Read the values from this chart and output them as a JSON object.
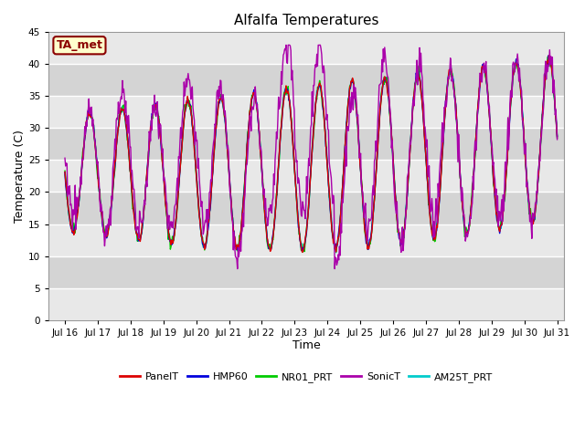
{
  "title": "Alfalfa Temperatures",
  "xlabel": "Time",
  "ylabel": "Temperature (C)",
  "ylim": [
    0,
    45
  ],
  "yticks": [
    0,
    5,
    10,
    15,
    20,
    25,
    30,
    35,
    40,
    45
  ],
  "xlim": [
    15.5,
    31.2
  ],
  "xtick_positions": [
    16,
    17,
    18,
    19,
    20,
    21,
    22,
    23,
    24,
    25,
    26,
    27,
    28,
    29,
    30,
    31
  ],
  "xtick_labels": [
    "Jul 16",
    "Jul 17",
    "Jul 18",
    "Jul 19",
    "Jul 20",
    "Jul 21",
    "Jul 22",
    "Jul 23",
    "Jul 24",
    "Jul 25",
    "Jul 26",
    "Jul 27",
    "Jul 28",
    "Jul 29",
    "Jul 30",
    "Jul 31"
  ],
  "series_colors": {
    "PanelT": "#dd0000",
    "HMP60": "#0000dd",
    "NR01_PRT": "#00cc00",
    "SonicT": "#aa00aa",
    "AM25T_PRT": "#00cccc"
  },
  "plot_bg_light": "#e8e8e8",
  "plot_bg_dark": "#d4d4d4",
  "grid_color": "#ffffff",
  "annotation_text": "TA_met",
  "annotation_bg": "#ffffcc",
  "annotation_border": "#8b0000",
  "annotation_text_color": "#8b0000",
  "title_fontsize": 11,
  "axis_label_fontsize": 9,
  "tick_fontsize": 7.5
}
